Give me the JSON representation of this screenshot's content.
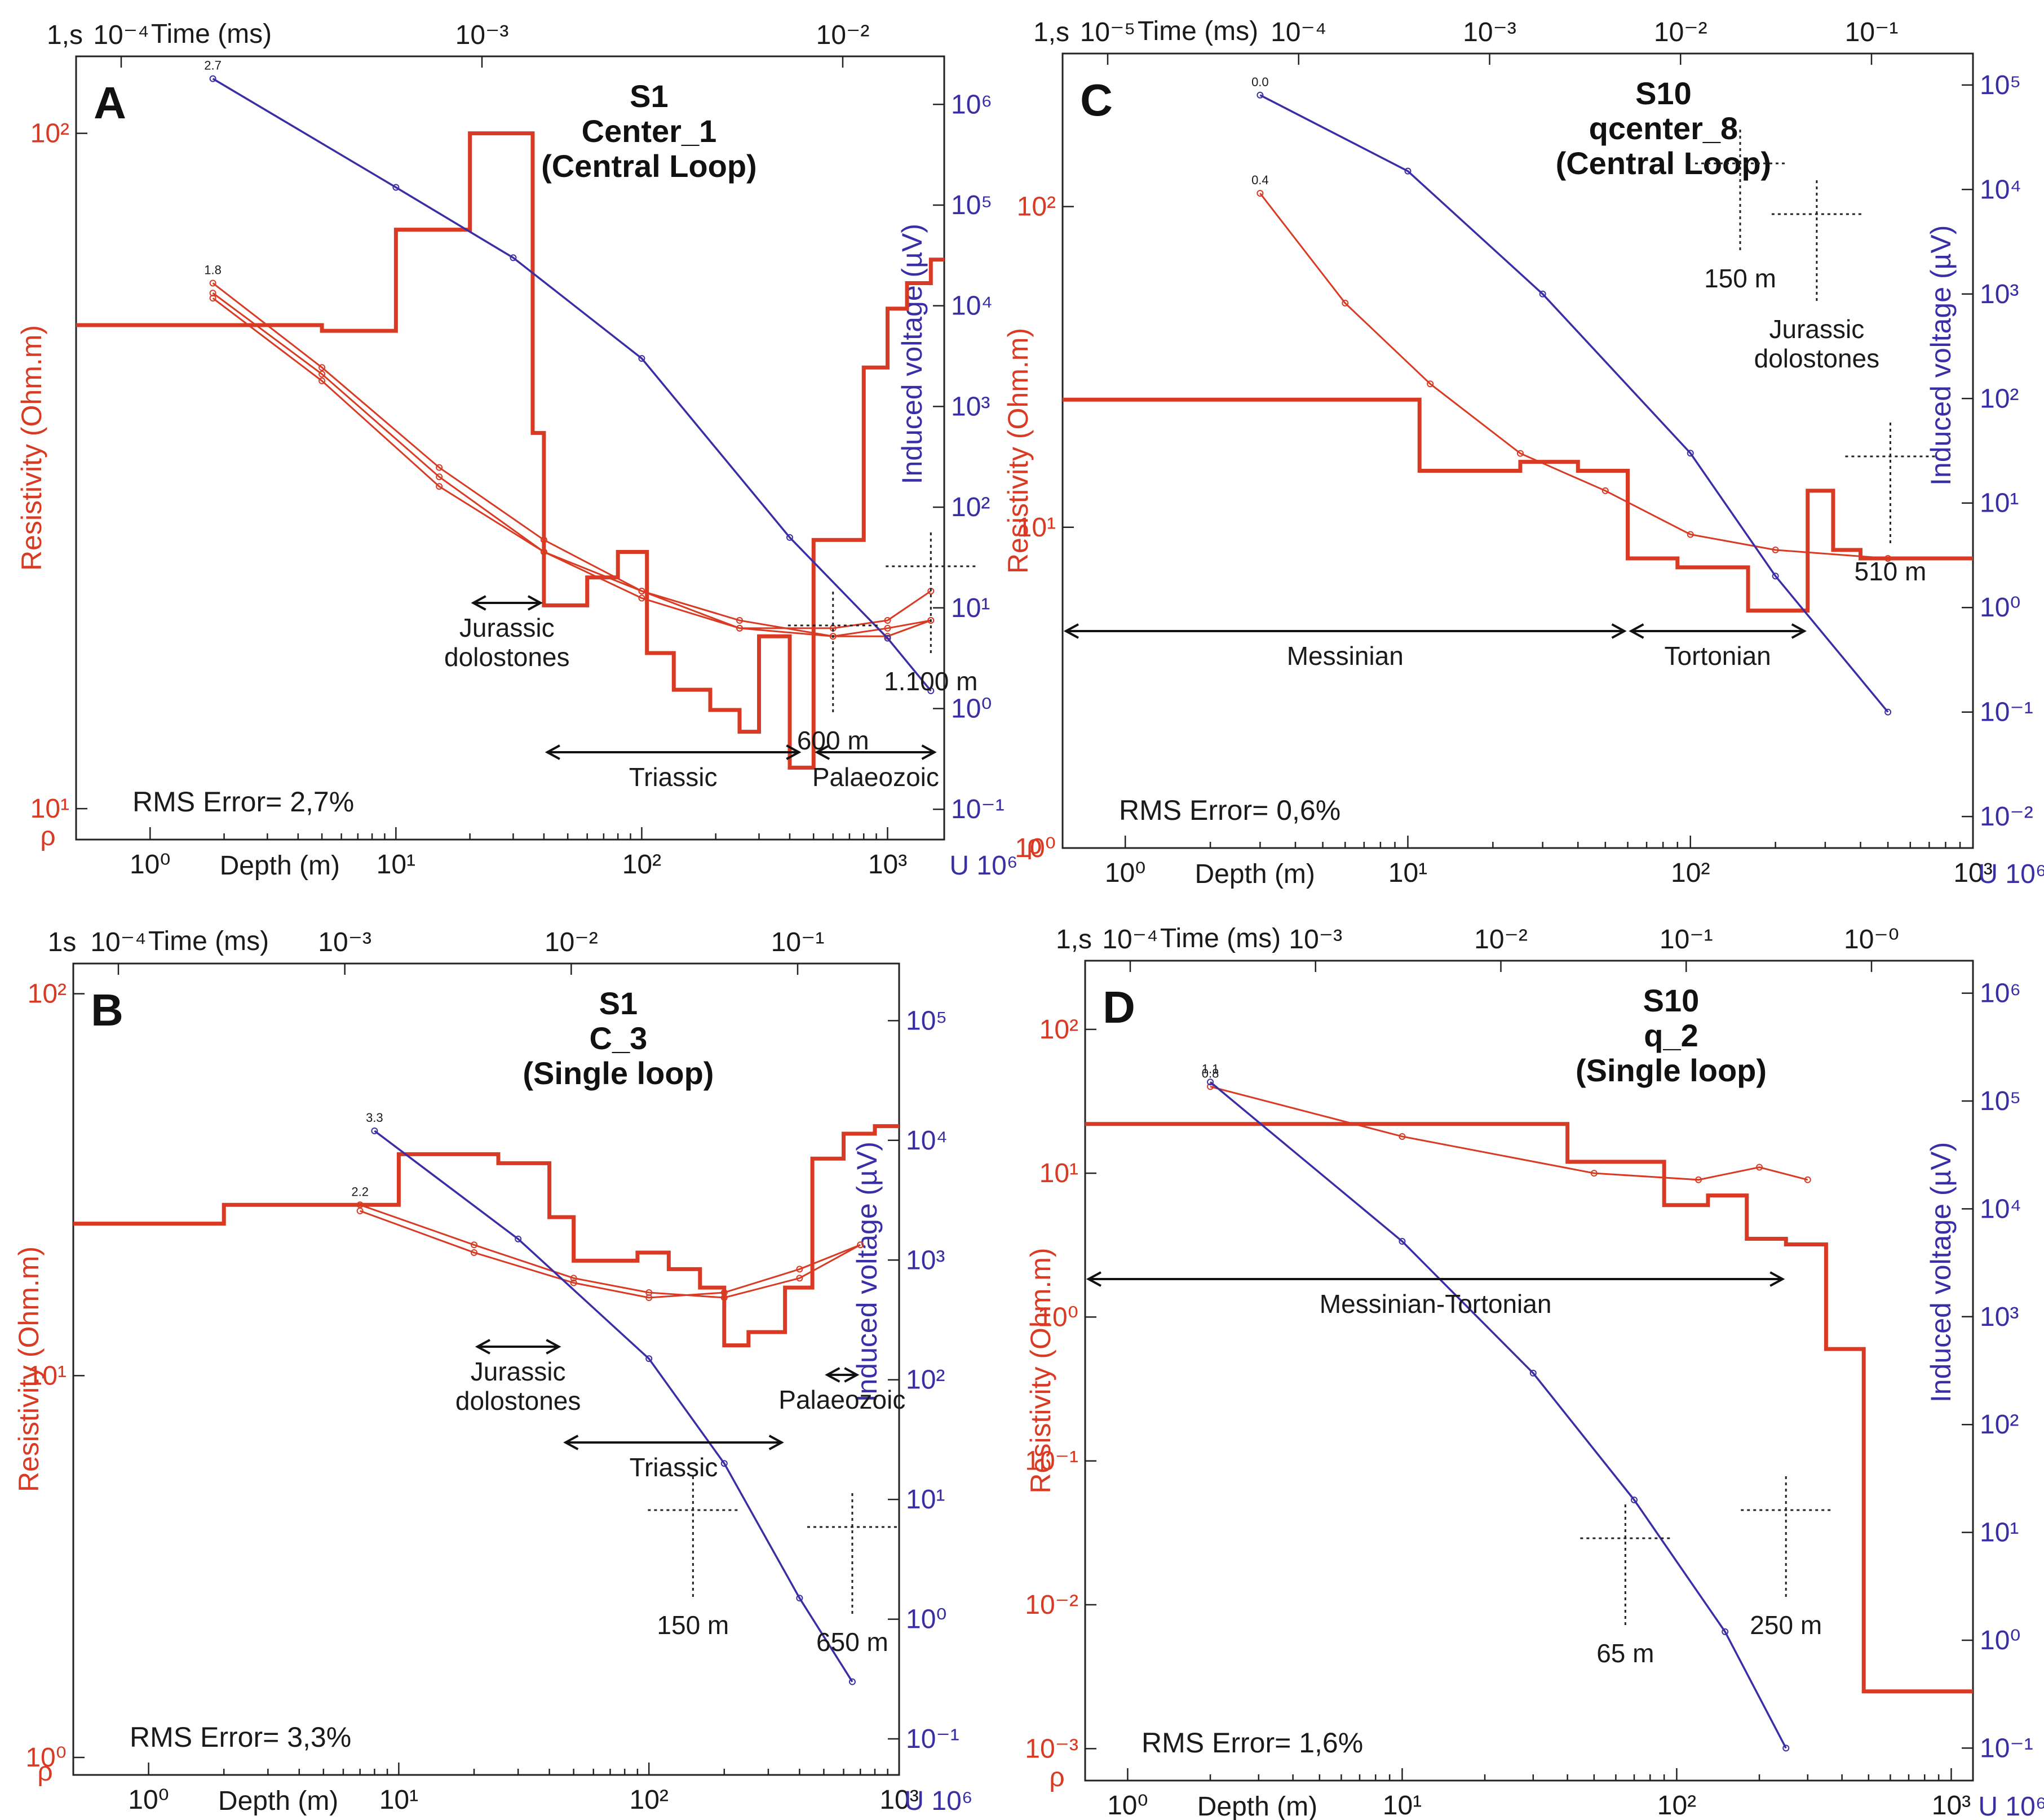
{
  "colors": {
    "resistivity": "#d93a23",
    "induced_voltage": "#3a2ea6",
    "axes": "#222222"
  },
  "chart_data": [
    {
      "type": "line",
      "panel": "A",
      "title": [
        "S1",
        "Center_1",
        "(Central Loop)"
      ],
      "xlabel": "Depth (m)",
      "x2label": "Time (ms)",
      "ylabel_left": "Resistivity (Ohm.m)",
      "ylabel_right": "Induced voltage (µV)",
      "left_axis_symbol": "ρ",
      "right_axis_symbol": "U 10⁶",
      "top_corner_label": "1,s",
      "x_scale": "log",
      "xlim": [
        0.5,
        1700
      ],
      "y_scale": "log",
      "ylim": [
        9,
        130
      ],
      "y2_scale": "log",
      "y2lim": [
        0.05,
        3000000
      ],
      "t_scale": "log",
      "tlim": [
        5e-05,
        0.02
      ],
      "x_ticks": [
        "10⁰",
        "10¹",
        "10²",
        "10³"
      ],
      "t_ticks": [
        "10⁻⁴",
        "10⁻³",
        "10⁻²"
      ],
      "y_ticks": [
        "10¹",
        "10²"
      ],
      "y2_ticks": [
        "10⁻¹",
        "10⁰",
        "10¹",
        "10²",
        "10³",
        "10⁴",
        "10⁵",
        "10⁶"
      ],
      "series": [
        {
          "kind": "model",
          "steps": [
            [
              0.5,
              52
            ],
            [
              5,
              51
            ],
            [
              10,
              72
            ],
            [
              20,
              100
            ],
            [
              36,
              36
            ],
            [
              40,
              20
            ],
            [
              60,
              22
            ],
            [
              80,
              24
            ],
            [
              105,
              17
            ],
            [
              135,
              15
            ],
            [
              190,
              14
            ],
            [
              250,
              13
            ],
            [
              300,
              18
            ],
            [
              400,
              11.5
            ],
            [
              500,
              25
            ],
            [
              800,
              45
            ],
            [
              1000,
              55
            ],
            [
              1200,
              60
            ],
            [
              1500,
              65
            ],
            [
              1700,
              65
            ]
          ]
        },
        {
          "kind": "apparent",
          "label": "1.8",
          "points": [
            [
              1.8,
              60
            ],
            [
              5,
              45
            ],
            [
              15,
              32
            ],
            [
              40,
              25
            ],
            [
              100,
              21
            ],
            [
              250,
              19
            ],
            [
              600,
              18
            ],
            [
              1000,
              18.5
            ],
            [
              1500,
              19
            ]
          ]
        },
        {
          "kind": "apparent",
          "points": [
            [
              1.8,
              58
            ],
            [
              5,
              44
            ],
            [
              15,
              31
            ],
            [
              40,
              24
            ],
            [
              100,
              21
            ],
            [
              250,
              18.5
            ],
            [
              600,
              18.5
            ],
            [
              1000,
              19
            ],
            [
              1500,
              21
            ]
          ]
        },
        {
          "kind": "apparent",
          "points": [
            [
              1.8,
              57
            ],
            [
              5,
              43
            ],
            [
              15,
              30
            ],
            [
              40,
              24
            ],
            [
              100,
              20.5
            ],
            [
              250,
              18.5
            ],
            [
              600,
              18
            ],
            [
              1000,
              18
            ],
            [
              1500,
              19
            ]
          ]
        },
        {
          "kind": "voltage",
          "label": "2.7",
          "points": [
            [
              1.8,
              1800000
            ],
            [
              10,
              150000
            ],
            [
              30,
              30000
            ],
            [
              100,
              3000
            ],
            [
              400,
              50
            ],
            [
              1000,
              5
            ],
            [
              1500,
              1.5
            ]
          ]
        }
      ],
      "annotations": [
        {
          "text": "Jurassic dolostones",
          "arrow": [
            20,
            40
          ]
        },
        {
          "text": "Triassic",
          "arrow": [
            40,
            450
          ]
        },
        {
          "text": "Palaeozoic",
          "arrow": [
            500,
            1600
          ]
        },
        {
          "text": "600 m",
          "depth": 600
        },
        {
          "text": "1.100 m",
          "depth": 1500
        }
      ],
      "rms": "RMS Error= 2,7%"
    },
    {
      "type": "line",
      "panel": "B",
      "title": [
        "S1",
        "C_3",
        "(Single loop)"
      ],
      "xlabel": "Depth (m)",
      "x2label": "Time (ms)",
      "ylabel_left": "Resistivity (Ohm.m)",
      "ylabel_right": "Induced voltage (µV)",
      "left_axis_symbol": "ρ",
      "right_axis_symbol": "U 10⁶",
      "top_corner_label": "1s",
      "x_scale": "log",
      "xlim": [
        0.5,
        1000
      ],
      "y_scale": "log",
      "ylim": [
        0.9,
        120
      ],
      "y2_scale": "log",
      "y2lim": [
        0.05,
        300000
      ],
      "x_ticks": [
        "10⁰",
        "10¹",
        "10²",
        "10³"
      ],
      "t_ticks": [
        "10⁻⁴",
        "10⁻³",
        "10⁻²",
        "10⁻¹"
      ],
      "y_ticks": [
        "10⁰",
        "10¹",
        "10²"
      ],
      "y2_ticks": [
        "10⁻¹",
        "10⁰",
        "10¹",
        "10²",
        "10³",
        "10⁴",
        "10⁵"
      ],
      "series": [
        {
          "kind": "model",
          "steps": [
            [
              0.5,
              25
            ],
            [
              2,
              28
            ],
            [
              10,
              38
            ],
            [
              25,
              36
            ],
            [
              40,
              26
            ],
            [
              50,
              20
            ],
            [
              70,
              20
            ],
            [
              90,
              21
            ],
            [
              120,
              19
            ],
            [
              160,
              17
            ],
            [
              200,
              12
            ],
            [
              250,
              13
            ],
            [
              350,
              17
            ],
            [
              450,
              37
            ],
            [
              600,
              43
            ],
            [
              800,
              45
            ],
            [
              1000,
              45
            ]
          ]
        },
        {
          "kind": "apparent",
          "label": "2.2",
          "points": [
            [
              7,
              28
            ],
            [
              20,
              22
            ],
            [
              50,
              18
            ],
            [
              100,
              16.5
            ],
            [
              200,
              16
            ],
            [
              400,
              18
            ],
            [
              700,
              22
            ]
          ]
        },
        {
          "kind": "apparent",
          "points": [
            [
              7,
              27
            ],
            [
              20,
              21
            ],
            [
              50,
              17.5
            ],
            [
              100,
              16
            ],
            [
              200,
              16.5
            ],
            [
              400,
              19
            ],
            [
              700,
              22
            ]
          ]
        },
        {
          "kind": "voltage",
          "label": "3.3",
          "points": [
            [
              8,
              12000
            ],
            [
              30,
              1500
            ],
            [
              100,
              150
            ],
            [
              200,
              20
            ],
            [
              400,
              1.5
            ],
            [
              650,
              0.3
            ]
          ]
        }
      ],
      "annotations": [
        {
          "text": "Jurassic dolostones",
          "arrow": [
            20,
            45
          ]
        },
        {
          "text": "Triassic",
          "arrow": [
            45,
            350
          ]
        },
        {
          "text": "Palaeozoic",
          "arrow": [
            500,
            700
          ]
        },
        {
          "text": "150 m",
          "depth": 150
        },
        {
          "text": "650 m",
          "depth": 650
        }
      ],
      "rms": "RMS Error= 3,3%"
    },
    {
      "type": "line",
      "panel": "C",
      "title": [
        "S10",
        "qcenter_8",
        "(Central Loop)"
      ],
      "xlabel": "Depth (m)",
      "x2label": "Time (ms)",
      "ylabel_left": "Resistivity (Ohm.m)",
      "ylabel_right": "Induced voltage (µV)",
      "left_axis_symbol": "ρ",
      "right_axis_symbol": "U 10⁶",
      "top_corner_label": "1,s",
      "x_scale": "log",
      "xlim": [
        0.6,
        1000
      ],
      "y_scale": "log",
      "ylim": [
        1,
        300
      ],
      "y2_scale": "log",
      "y2lim": [
        0.005,
        200000
      ],
      "x_ticks": [
        "10⁰",
        "10¹",
        "10²",
        "10³"
      ],
      "t_ticks": [
        "10⁻⁵",
        "10⁻⁴",
        "10⁻³",
        "10⁻²",
        "10⁻¹"
      ],
      "y_ticks": [
        "10⁰",
        "10¹",
        "10²"
      ],
      "y2_ticks": [
        "10⁻²",
        "10⁻¹",
        "10⁰",
        "10¹",
        "10²",
        "10³",
        "10⁴",
        "10⁵"
      ],
      "series": [
        {
          "kind": "model",
          "steps": [
            [
              0.6,
              25
            ],
            [
              11,
              15
            ],
            [
              25,
              16
            ],
            [
              40,
              15
            ],
            [
              60,
              8
            ],
            [
              90,
              7.5
            ],
            [
              160,
              5.5
            ],
            [
              260,
              13
            ],
            [
              320,
              8.5
            ],
            [
              400,
              8
            ],
            [
              1000,
              8
            ]
          ]
        },
        {
          "kind": "apparent",
          "label": "0.4",
          "points": [
            [
              3,
              110
            ],
            [
              6,
              50
            ],
            [
              12,
              28
            ],
            [
              25,
              17
            ],
            [
              50,
              13
            ],
            [
              100,
              9.5
            ],
            [
              200,
              8.5
            ],
            [
              500,
              8
            ]
          ]
        },
        {
          "kind": "voltage",
          "label": "0.0",
          "points": [
            [
              3,
              80000
            ],
            [
              10,
              15000
            ],
            [
              30,
              1000
            ],
            [
              100,
              30
            ],
            [
              200,
              2
            ],
            [
              500,
              0.1
            ]
          ]
        }
      ],
      "annotations": [
        {
          "text": "Jurassic dolostones",
          "depth": 280
        },
        {
          "text": "150 m",
          "depth": 150
        },
        {
          "text": "510 m",
          "depth": 510
        },
        {
          "text": "Messinian",
          "arrow": [
            0.6,
            60
          ]
        },
        {
          "text": "Tortonian",
          "arrow": [
            60,
            260
          ]
        }
      ],
      "rms": "RMS Error= 0,6%"
    },
    {
      "type": "line",
      "panel": "D",
      "title": [
        "S10",
        "q_2",
        "(Single loop)"
      ],
      "xlabel": "Depth (m)",
      "x2label": "Time (ms)",
      "ylabel_left": "Resistivity (Ohm.m)",
      "ylabel_right": "Induced voltage (µV)",
      "left_axis_symbol": "ρ",
      "right_axis_symbol": "U 10⁶",
      "top_corner_label": "1,s",
      "x_scale": "log",
      "xlim": [
        0.7,
        1200
      ],
      "y_scale": "log",
      "ylim": [
        0.0006,
        300
      ],
      "y2_scale": "log",
      "y2lim": [
        0.05,
        2000000
      ],
      "x_ticks": [
        "10⁰",
        "10¹",
        "10²",
        "10³"
      ],
      "t_ticks": [
        "10⁻⁴",
        "10⁻³",
        "10⁻²",
        "10⁻¹",
        "10⁻⁰"
      ],
      "y_ticks": [
        "10⁻³",
        "10⁻²",
        "10⁻¹",
        "10⁰",
        "10¹",
        "10²"
      ],
      "y2_ticks": [
        "10⁻¹",
        "10⁰",
        "10¹",
        "10²",
        "10³",
        "10⁴",
        "10⁵",
        "10⁶"
      ],
      "series": [
        {
          "kind": "model",
          "steps": [
            [
              0.7,
              22
            ],
            [
              40,
              12
            ],
            [
              90,
              6
            ],
            [
              130,
              7
            ],
            [
              180,
              3.5
            ],
            [
              250,
              3.2
            ],
            [
              350,
              0.6
            ],
            [
              480,
              0.0025
            ],
            [
              1200,
              0.0025
            ]
          ]
        },
        {
          "kind": "apparent",
          "label": "0.8",
          "points": [
            [
              2,
              40
            ],
            [
              10,
              18
            ],
            [
              50,
              10
            ],
            [
              120,
              9
            ],
            [
              200,
              11
            ],
            [
              300,
              9
            ]
          ]
        },
        {
          "kind": "voltage",
          "label": "1.1",
          "points": [
            [
              2,
              150000
            ],
            [
              10,
              5000
            ],
            [
              30,
              300
            ],
            [
              70,
              20
            ],
            [
              150,
              1.2
            ],
            [
              250,
              0.1
            ]
          ]
        }
      ],
      "annotations": [
        {
          "text": "Messinian-Tortonian",
          "arrow": [
            0.7,
            250
          ]
        },
        {
          "text": "65 m",
          "depth": 65
        },
        {
          "text": "250 m",
          "depth": 250
        }
      ],
      "rms": "RMS Error= 1,6%"
    }
  ]
}
